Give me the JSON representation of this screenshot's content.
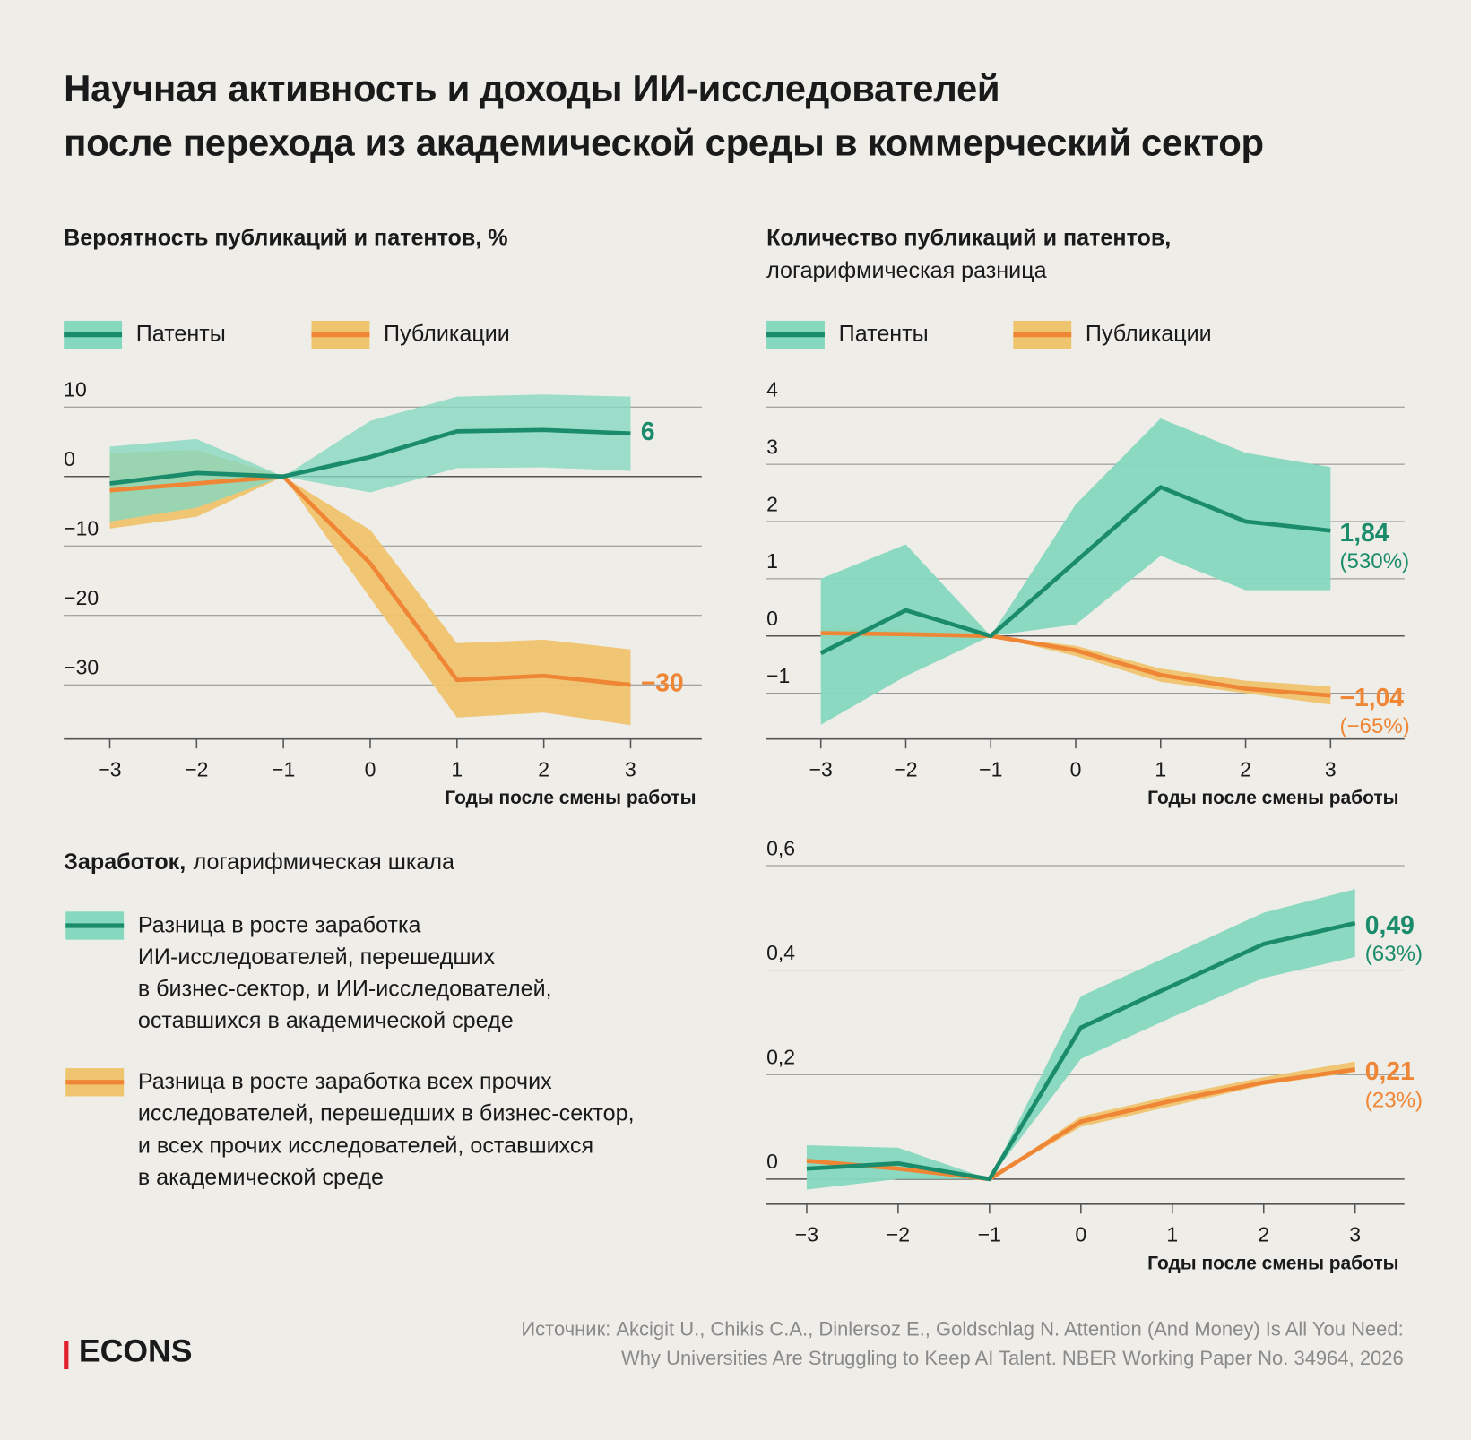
{
  "title": "Научная активность и доходы ИИ-исследователей\nпосле перехода из академической среды в коммерческий сектор",
  "source": "Источник: Akcigit U., Chikis C.A., Dinlersoz E., Goldschlag N. Attention (And Money) Is All You Need:\nWhy Universities Are Struggling to Keep AI Talent. NBER Working Paper No. 34964, 2026",
  "logo": "ECONS",
  "chart_data": [
    {
      "type": "line",
      "title": "Вероятность публикаций и патентов, %",
      "x_label": "Годы после смены работы",
      "x": [
        -3,
        -2,
        -1,
        0,
        1,
        2,
        3
      ],
      "xlim": [
        -3.53,
        3.82
      ],
      "xticks": [
        {
          "value": -3,
          "label": "−3"
        },
        {
          "value": -2,
          "label": "−2"
        },
        {
          "value": -1,
          "label": "−1"
        },
        0,
        1,
        2,
        3
      ],
      "ylim": [
        -37.8,
        10
      ],
      "yticks": [
        10,
        0,
        {
          "value": -10,
          "label": "−10"
        },
        {
          "value": -20,
          "label": "−20"
        },
        {
          "value": -30,
          "label": "−30"
        }
      ],
      "grid": true,
      "series": [
        {
          "name": "Публикации",
          "color": "#ef8636",
          "band_color": "#efc46f",
          "values": [
            -2,
            -1,
            0,
            -12.5,
            -29.3,
            -28.7,
            -30
          ],
          "lower": [
            -7.5,
            -5.8,
            0,
            -17.5,
            -34.7,
            -34,
            -35.8
          ],
          "upper": [
            3.4,
            3.8,
            0,
            -7.7,
            -24,
            -23.5,
            -24.9
          ],
          "value_labels": [
            null,
            null,
            null,
            null,
            null,
            null,
            "−30"
          ]
        },
        {
          "name": "Патенты",
          "color": "#1b8c6b",
          "band_color": "#86d8bf",
          "values": [
            -1,
            0.5,
            0,
            2.8,
            6.5,
            6.7,
            6.2
          ],
          "lower": [
            -6.5,
            -4.5,
            0,
            -2.3,
            1.2,
            1.3,
            0.8
          ],
          "upper": [
            4.3,
            5.4,
            0,
            8,
            11.5,
            11.8,
            11.5
          ],
          "value_labels": [
            null,
            null,
            null,
            null,
            null,
            null,
            "6"
          ]
        }
      ]
    },
    {
      "type": "line",
      "title": "Количество публикаций и патентов,",
      "subtitle": "логарифмическая разница",
      "x_label": "Годы после смены работы",
      "x": [
        -3,
        -2,
        -1,
        0,
        1,
        2,
        3
      ],
      "xlim": [
        -3.64,
        3.87
      ],
      "xticks": [
        {
          "value": -3,
          "label": "−3"
        },
        {
          "value": -2,
          "label": "−2"
        },
        {
          "value": -1,
          "label": "−1"
        },
        0,
        1,
        2,
        3
      ],
      "ylim": [
        -1.8,
        4
      ],
      "yticks": [
        4,
        3,
        2,
        1,
        0,
        {
          "value": -1,
          "label": "−1"
        }
      ],
      "grid": true,
      "series": [
        {
          "name": "Публикации",
          "color": "#ef8636",
          "band_color": "#efc46f",
          "values": [
            0.05,
            0.03,
            0,
            -0.25,
            -0.68,
            -0.92,
            -1.04
          ],
          "lower": [
            -0.05,
            -0.03,
            0,
            -0.35,
            -0.8,
            -1.0,
            -1.2
          ],
          "upper": [
            0.15,
            0.1,
            0,
            -0.17,
            -0.57,
            -0.78,
            -0.88
          ],
          "value_labels": [
            null,
            null,
            null,
            null,
            null,
            null,
            "−1,04"
          ],
          "value_notes": [
            null,
            null,
            null,
            null,
            null,
            null,
            "(−65%)"
          ]
        },
        {
          "name": "Патенты",
          "color": "#1b8c6b",
          "band_color": "#86d8bf",
          "values": [
            -0.3,
            0.45,
            0,
            1.3,
            2.6,
            2.0,
            1.84
          ],
          "lower": [
            -1.55,
            -0.7,
            0,
            0.2,
            1.4,
            0.8,
            0.8
          ],
          "upper": [
            1.0,
            1.6,
            0,
            2.3,
            3.8,
            3.2,
            2.95
          ],
          "value_labels": [
            null,
            null,
            null,
            null,
            null,
            null,
            "1,84"
          ],
          "value_notes": [
            null,
            null,
            null,
            null,
            null,
            null,
            "(530%)"
          ]
        }
      ]
    },
    {
      "type": "line",
      "title": "Заработок,",
      "subtitle": "логарифмическая шкала",
      "x_label": "Годы после смены работы",
      "x": [
        -3,
        -2,
        -1,
        0,
        1,
        2,
        3
      ],
      "xlim": [
        -3.44,
        3.54
      ],
      "xticks": [
        {
          "value": -3,
          "label": "−3"
        },
        {
          "value": -2,
          "label": "−2"
        },
        {
          "value": -1,
          "label": "−1"
        },
        0,
        1,
        2,
        3
      ],
      "ylim": [
        -0.048,
        0.6
      ],
      "yticks": [
        {
          "value": 0.6,
          "label": "0,6"
        },
        {
          "value": 0.4,
          "label": "0,4"
        },
        {
          "value": 0.2,
          "label": "0,2"
        },
        0
      ],
      "grid": true,
      "series": [
        {
          "name": "Разница в росте заработка всех прочих\nисследователей, перешедших в бизнес-сектор,\nи всех прочих исследователей, оставшихся\nв академической среде",
          "color": "#ef8636",
          "band_color": "#efc46f",
          "values": [
            0.035,
            0.02,
            0,
            0.11,
            0.15,
            0.185,
            0.21
          ],
          "lower": [
            0.03,
            0.015,
            0,
            0.1,
            0.14,
            0.18,
            0.205
          ],
          "upper": [
            0.04,
            0.025,
            0,
            0.12,
            0.16,
            0.195,
            0.225
          ],
          "value_labels": [
            null,
            null,
            null,
            null,
            null,
            null,
            "0,21"
          ],
          "value_notes": [
            null,
            null,
            null,
            null,
            null,
            null,
            "(23%)"
          ]
        },
        {
          "name": "Разница в росте заработка\nИИ-исследователей, перешедших\nв бизнес-сектор, и ИИ-исследователей,\nоставшихся в академической среде",
          "color": "#1b8c6b",
          "band_color": "#86d8bf",
          "values": [
            0.02,
            0.03,
            0,
            0.29,
            0.37,
            0.45,
            0.49
          ],
          "lower": [
            -0.02,
            0,
            0,
            0.23,
            0.31,
            0.385,
            0.425
          ],
          "upper": [
            0.065,
            0.06,
            0,
            0.35,
            0.43,
            0.51,
            0.555
          ],
          "value_labels": [
            null,
            null,
            null,
            null,
            null,
            null,
            "0,49"
          ],
          "value_notes": [
            null,
            null,
            null,
            null,
            null,
            null,
            "(63%)"
          ]
        }
      ]
    }
  ]
}
